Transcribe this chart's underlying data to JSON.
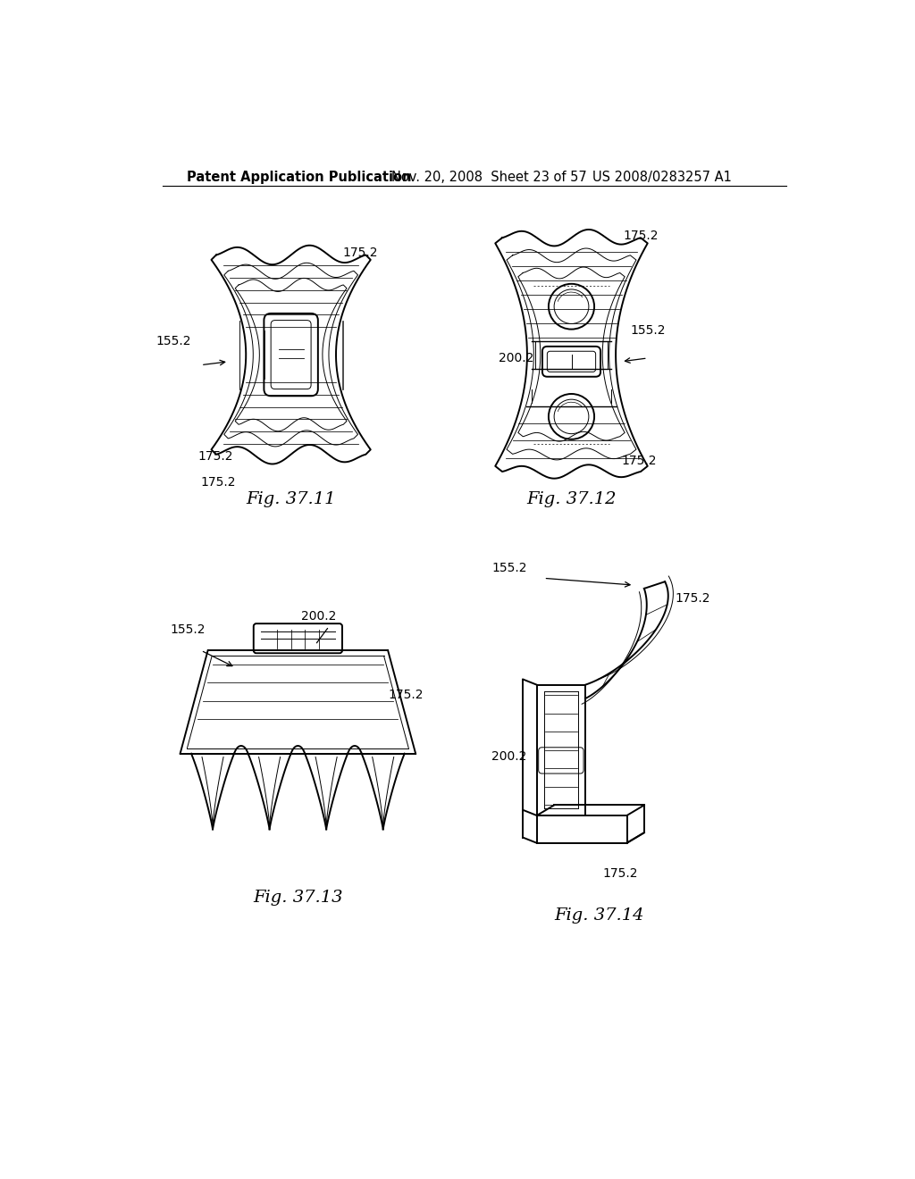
{
  "header_left": "Patent Application Publication",
  "header_mid": "Nov. 20, 2008  Sheet 23 of 57",
  "header_right": "US 2008/0283257 A1",
  "background_color": "#ffffff",
  "line_color": "#000000",
  "text_color": "#000000",
  "header_fontsize": 10.5,
  "label_fontsize": 14,
  "annotation_fontsize": 10
}
